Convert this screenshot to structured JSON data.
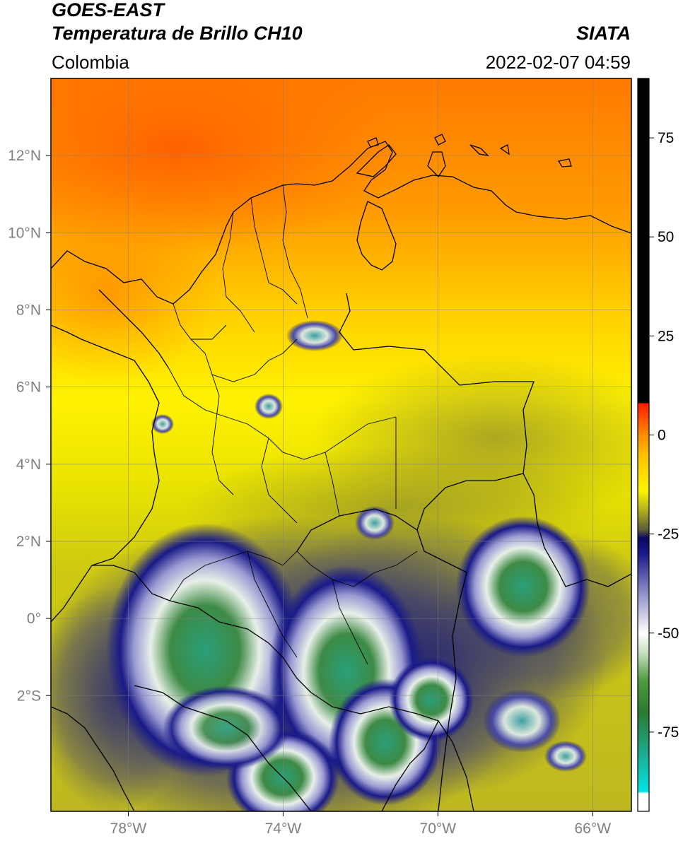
{
  "header": {
    "title_line1": "GOES-EAST",
    "title_line2": "Temperatura de Brillo CH10",
    "region": "Colombia",
    "organization": "SIATA",
    "datetime": "2022-02-07 04:59"
  },
  "map": {
    "lon_range": [
      -80,
      -65
    ],
    "lat_range": [
      -5,
      14
    ],
    "lon_ticks": [
      {
        "value": -78,
        "label": "78°W"
      },
      {
        "value": -74,
        "label": "74°W"
      },
      {
        "value": -70,
        "label": "70°W"
      },
      {
        "value": -66,
        "label": "66°W"
      }
    ],
    "lat_ticks": [
      {
        "value": 12,
        "label": "12°N"
      },
      {
        "value": 10,
        "label": "10°N"
      },
      {
        "value": 8,
        "label": "8°N"
      },
      {
        "value": 6,
        "label": "6°N"
      },
      {
        "value": 4,
        "label": "4°N"
      },
      {
        "value": 2,
        "label": "2°N"
      },
      {
        "value": 0,
        "label": "0°"
      },
      {
        "value": -2,
        "label": "2°S"
      }
    ],
    "grid": true
  },
  "colorbar": {
    "range": [
      -95,
      90
    ],
    "ticks": [
      {
        "value": 75,
        "label": "75"
      },
      {
        "value": 50,
        "label": "50"
      },
      {
        "value": 25,
        "label": "25"
      },
      {
        "value": 0,
        "label": "0"
      },
      {
        "value": -25,
        "label": "-25"
      },
      {
        "value": -50,
        "label": "-50"
      },
      {
        "value": -75,
        "label": "-75"
      }
    ],
    "stops": [
      {
        "value": -95,
        "color": "#ffffff"
      },
      {
        "value": -90.5,
        "color": "#ffffff"
      },
      {
        "value": -90,
        "color": "#00e5e5"
      },
      {
        "value": -80,
        "color": "#1fa88a"
      },
      {
        "value": -70,
        "color": "#2b7a30"
      },
      {
        "value": -62,
        "color": "#4f9a3f"
      },
      {
        "value": -55,
        "color": "#c8e0c0"
      },
      {
        "value": -50,
        "color": "#ffffff"
      },
      {
        "value": -40,
        "color": "#9090c8"
      },
      {
        "value": -30,
        "color": "#1a1a8a"
      },
      {
        "value": -26,
        "color": "#0a0a60"
      },
      {
        "value": -24,
        "color": "#5a5a3a"
      },
      {
        "value": -19,
        "color": "#b0b020"
      },
      {
        "value": -14,
        "color": "#fff500"
      },
      {
        "value": -5,
        "color": "#ffc000"
      },
      {
        "value": 0,
        "color": "#ff8c00"
      },
      {
        "value": 8,
        "color": "#ff1a00"
      },
      {
        "value": 8.01,
        "color": "#000000"
      },
      {
        "value": 90,
        "color": "#000000"
      }
    ]
  }
}
